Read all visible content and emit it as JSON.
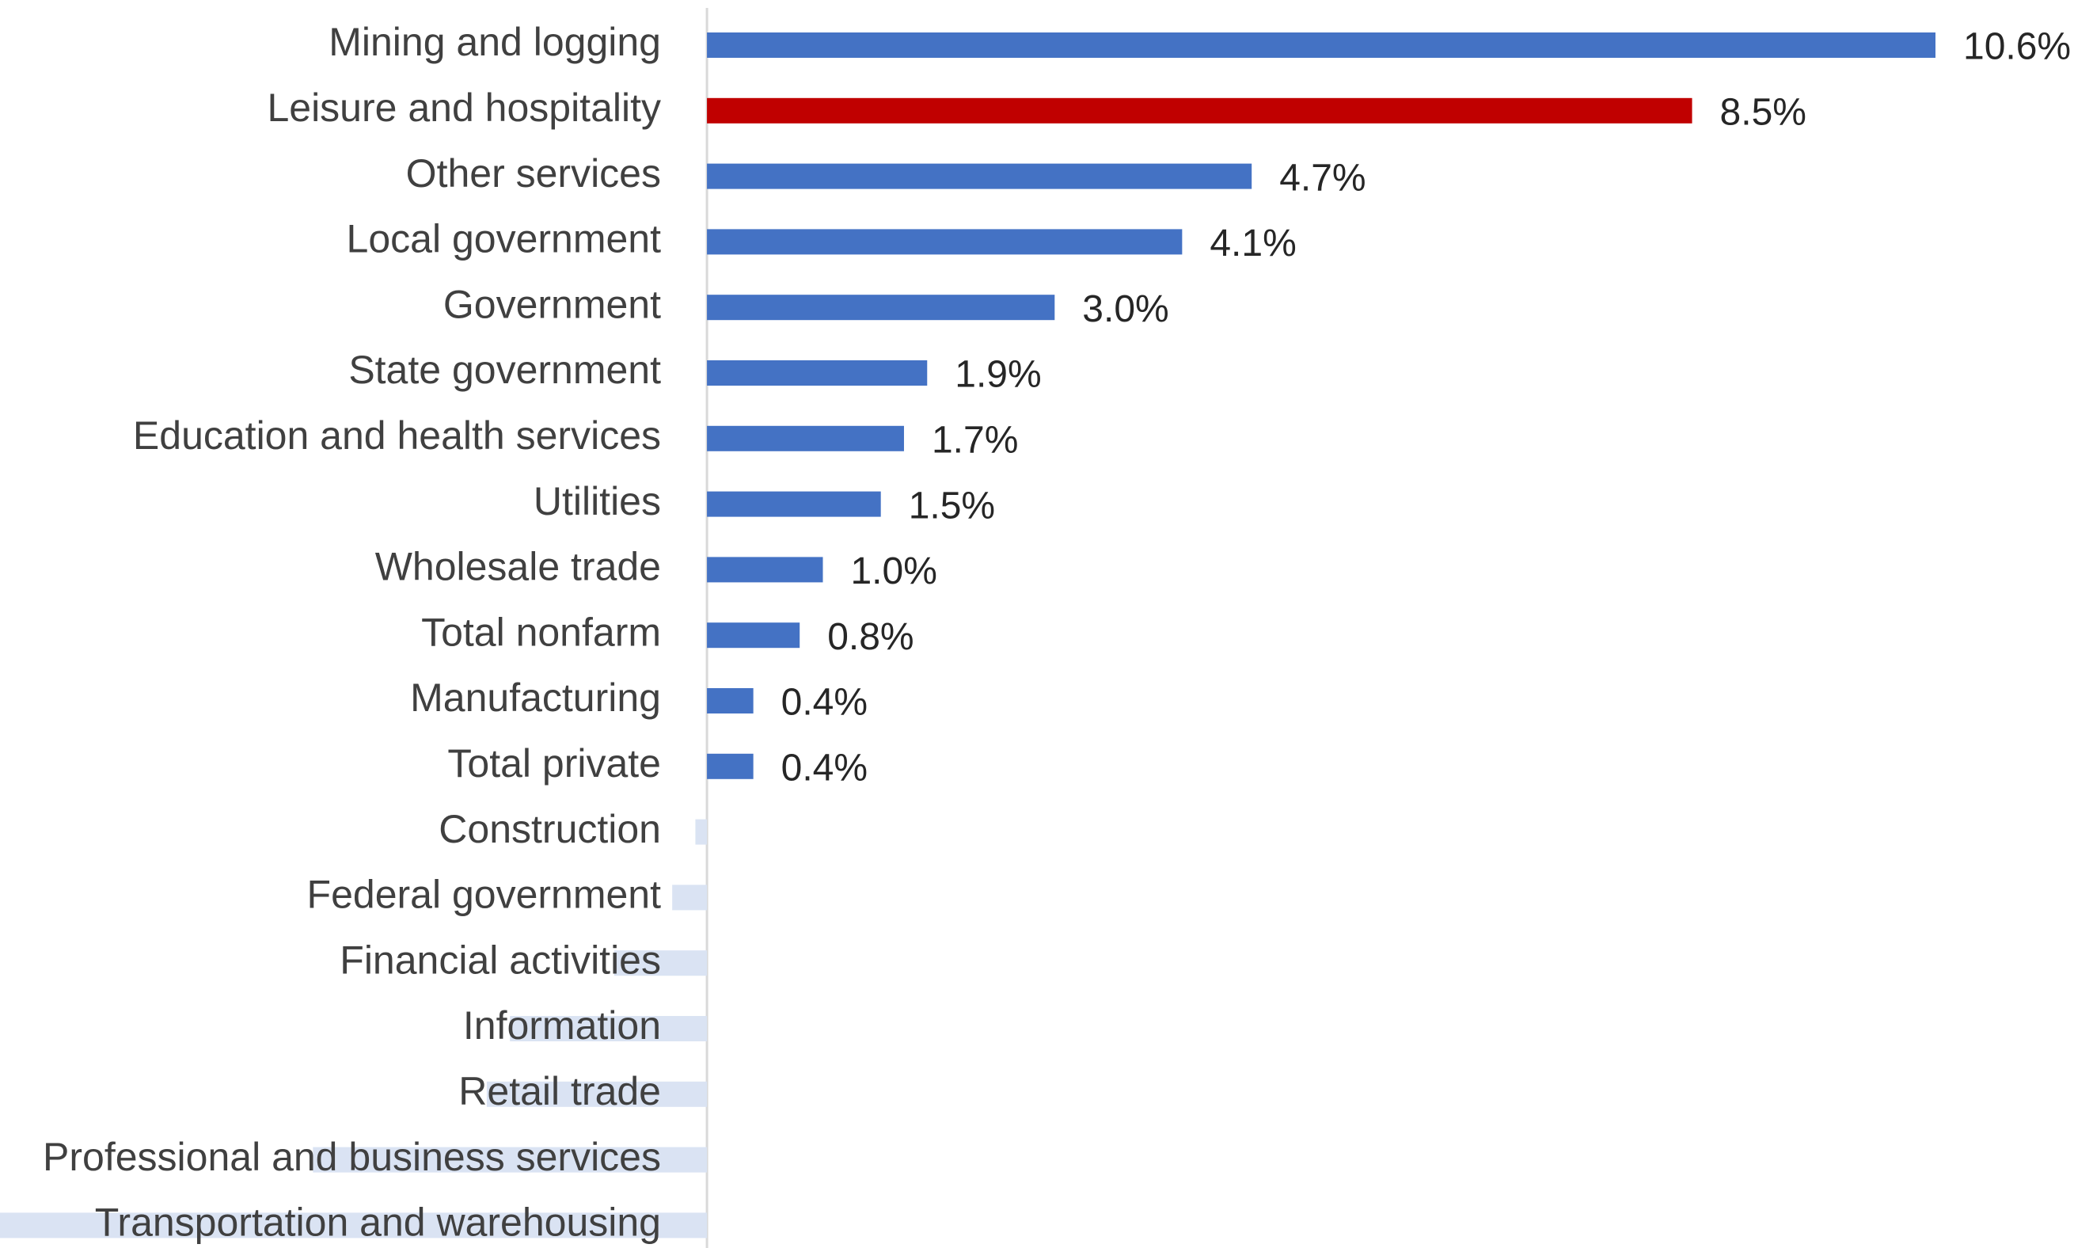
{
  "chart_data": {
    "type": "bar",
    "orientation": "horizontal",
    "categories": [
      "Mining and logging",
      "Leisure and hospitality",
      "Other services",
      "Local government",
      "Government",
      "State government",
      "Education and health services",
      "Utilities",
      "Wholesale trade",
      "Total nonfarm",
      "Manufacturing",
      "Total private",
      "Construction",
      "Federal government",
      "Financial activities",
      "Information",
      "Retail trade",
      "Professional and business services",
      "Transportation and warehousing"
    ],
    "values": [
      10.6,
      8.5,
      4.7,
      4.1,
      3.0,
      1.9,
      1.7,
      1.5,
      1.0,
      0.8,
      0.4,
      0.4,
      -0.1,
      -0.3,
      -0.8,
      -1.7,
      -1.9,
      -3.4,
      -6.1
    ],
    "value_labels": [
      "10.6%",
      "8.5%",
      "4.7%",
      "4.1%",
      "3.0%",
      "1.9%",
      "1.7%",
      "1.5%",
      "1.0%",
      "0.8%",
      "0.4%",
      "0.4%",
      null,
      null,
      null,
      null,
      null,
      null,
      null
    ],
    "colors": [
      "#4472c4",
      "#c00000",
      "#4472c4",
      "#4472c4",
      "#4472c4",
      "#4472c4",
      "#4472c4",
      "#4472c4",
      "#4472c4",
      "#4472c4",
      "#4472c4",
      "#4472c4",
      "#dae3f3",
      "#dae3f3",
      "#dae3f3",
      "#dae3f3",
      "#dae3f3",
      "#dae3f3",
      "#dae3f3"
    ],
    "xlim": [
      -6.1,
      10.6
    ]
  }
}
